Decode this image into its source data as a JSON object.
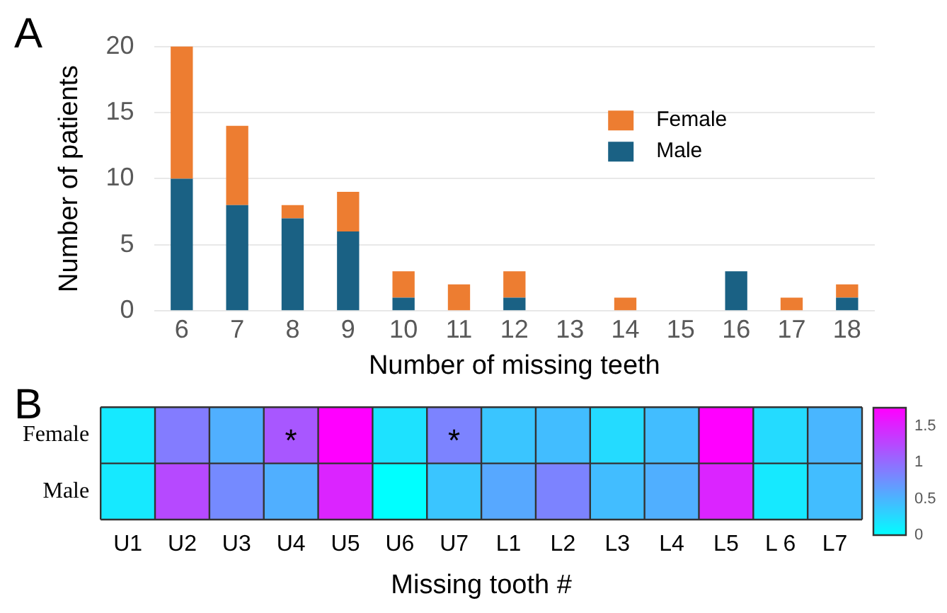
{
  "chart_data": [
    {
      "type": "bar",
      "annotations": [
        "A"
      ],
      "xlabel": "Number of missing teeth",
      "ylabel": "Number of patients",
      "categories": [
        "6",
        "7",
        "8",
        "9",
        "10",
        "11",
        "12",
        "13",
        "14",
        "15",
        "16",
        "17",
        "18"
      ],
      "stacked": true,
      "series": [
        {
          "name": "Male",
          "color": "#1a6184",
          "values": [
            10,
            8,
            7,
            6,
            1,
            0,
            1,
            0,
            0,
            0,
            3,
            0,
            1
          ]
        },
        {
          "name": "Female",
          "color": "#ed7d31",
          "values": [
            10,
            6,
            1,
            3,
            2,
            2,
            2,
            0,
            1,
            0,
            0,
            1,
            1
          ]
        }
      ],
      "ylim": [
        0,
        20
      ],
      "yticks": [
        0,
        5,
        10,
        15,
        20
      ],
      "grid": "y",
      "legend": "top right"
    },
    {
      "type": "heatmap",
      "annotations": [
        "B"
      ],
      "xlabel": "Missing tooth #",
      "categories": [
        "U1",
        "U2",
        "U3",
        "U4",
        "U5",
        "U6",
        "U7",
        "L1",
        "L2",
        "L3",
        "L4",
        "L5",
        "L 6",
        "L7"
      ],
      "y_categories": [
        "Female",
        "Male"
      ],
      "cells": [
        [
          0.15,
          0.9,
          0.55,
          1.15,
          1.75,
          0.2,
          0.85,
          0.4,
          0.45,
          0.25,
          0.45,
          1.75,
          0.25,
          0.5
        ],
        [
          0.15,
          1.25,
          0.8,
          0.55,
          1.5,
          0,
          0.4,
          0.6,
          0.85,
          0.45,
          0.55,
          1.5,
          0.15,
          0.45
        ]
      ],
      "cell_labels": [
        [
          null,
          null,
          null,
          "*",
          null,
          null,
          "*",
          null,
          null,
          null,
          null,
          null,
          null,
          null
        ],
        [
          null,
          null,
          null,
          null,
          null,
          null,
          null,
          null,
          null,
          null,
          null,
          null,
          null,
          null
        ]
      ],
      "clim": [
        0,
        1.75
      ],
      "cticks": [
        0,
        0.5,
        1,
        1.5
      ]
    }
  ]
}
